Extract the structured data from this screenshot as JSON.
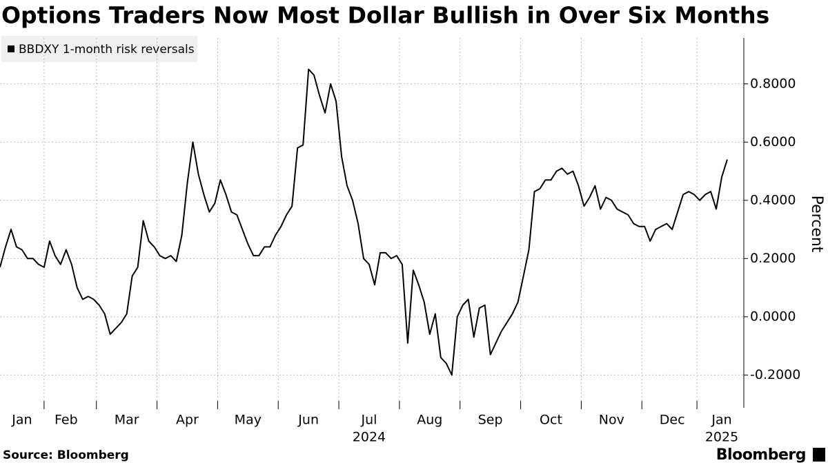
{
  "chart_data": {
    "type": "line",
    "title": "Options Traders Now Most Dollar Bullish in Over Six Months",
    "y_label": "Percent",
    "source": "Source: Bloomberg",
    "brand": "Bloomberg",
    "year_labels": [
      "2024",
      "2025"
    ],
    "categories": [
      null,
      null,
      null,
      null,
      "Jan",
      null,
      null,
      null,
      null,
      null,
      null,
      null,
      "Feb",
      null,
      null,
      null,
      null,
      null,
      null,
      null,
      null,
      null,
      null,
      "Mar",
      null,
      null,
      null,
      null,
      null,
      null,
      null,
      null,
      null,
      null,
      "Apr",
      null,
      null,
      null,
      null,
      null,
      null,
      null,
      null,
      null,
      null,
      "May",
      null,
      null,
      null,
      null,
      null,
      null,
      null,
      null,
      null,
      null,
      "Jun",
      null,
      null,
      null,
      null,
      null,
      null,
      null,
      null,
      null,
      null,
      "Jul",
      null,
      null,
      null,
      null,
      null,
      null,
      null,
      null,
      null,
      null,
      "Aug",
      null,
      null,
      null,
      null,
      null,
      null,
      null,
      null,
      null,
      null,
      "Sep",
      null,
      null,
      null,
      null,
      null,
      null,
      null,
      null,
      null,
      null,
      "Oct",
      null,
      null,
      null,
      null,
      null,
      null,
      null,
      null,
      null,
      null,
      "Nov",
      null,
      null,
      null,
      null,
      null,
      null,
      null,
      null,
      null,
      null,
      "Dec",
      null,
      null,
      null,
      null,
      null,
      null,
      null,
      null,
      "Jan",
      null
    ],
    "series": [
      {
        "name": "BBDXY 1-month risk reversals",
        "color": "#000000",
        "values": [
          0.17,
          0.24,
          0.3,
          0.24,
          0.23,
          0.2,
          0.2,
          0.18,
          0.17,
          0.26,
          0.21,
          0.18,
          0.23,
          0.18,
          0.1,
          0.06,
          0.07,
          0.06,
          0.04,
          0.01,
          -0.06,
          -0.04,
          -0.02,
          0.01,
          0.14,
          0.17,
          0.33,
          0.26,
          0.24,
          0.21,
          0.2,
          0.21,
          0.19,
          0.28,
          0.46,
          0.6,
          0.49,
          0.42,
          0.36,
          0.39,
          0.47,
          0.42,
          0.36,
          0.35,
          0.3,
          0.25,
          0.21,
          0.21,
          0.24,
          0.24,
          0.28,
          0.31,
          0.35,
          0.38,
          0.58,
          0.59,
          0.85,
          0.83,
          0.76,
          0.7,
          0.8,
          0.74,
          0.55,
          0.45,
          0.4,
          0.32,
          0.2,
          0.18,
          0.11,
          0.22,
          0.22,
          0.2,
          0.21,
          0.18,
          -0.09,
          0.16,
          0.11,
          0.05,
          -0.06,
          0.01,
          -0.14,
          -0.16,
          -0.2,
          0.0,
          0.04,
          0.06,
          -0.07,
          0.03,
          0.04,
          -0.13,
          -0.09,
          -0.05,
          -0.02,
          0.01,
          0.05,
          0.14,
          0.23,
          0.43,
          0.44,
          0.47,
          0.47,
          0.5,
          0.51,
          0.49,
          0.5,
          0.45,
          0.38,
          0.41,
          0.45,
          0.37,
          0.41,
          0.4,
          0.37,
          0.36,
          0.35,
          0.32,
          0.31,
          0.31,
          0.26,
          0.3,
          0.31,
          0.32,
          0.3,
          0.36,
          0.42,
          0.43,
          0.42,
          0.4,
          0.42,
          0.43,
          0.37,
          0.48,
          0.54
        ]
      }
    ],
    "ylim": [
      -0.308,
      0.958
    ],
    "yticks": [
      {
        "value": -0.2,
        "label": "-0.2000"
      },
      {
        "value": 0,
        "label": "0.0000"
      },
      {
        "value": 0.2,
        "label": "0.2000"
      },
      {
        "value": 0.4,
        "label": "0.4000"
      },
      {
        "value": 0.6,
        "label": "0.6000"
      },
      {
        "value": 0.8,
        "label": "0.8000"
      }
    ],
    "grid": true
  }
}
